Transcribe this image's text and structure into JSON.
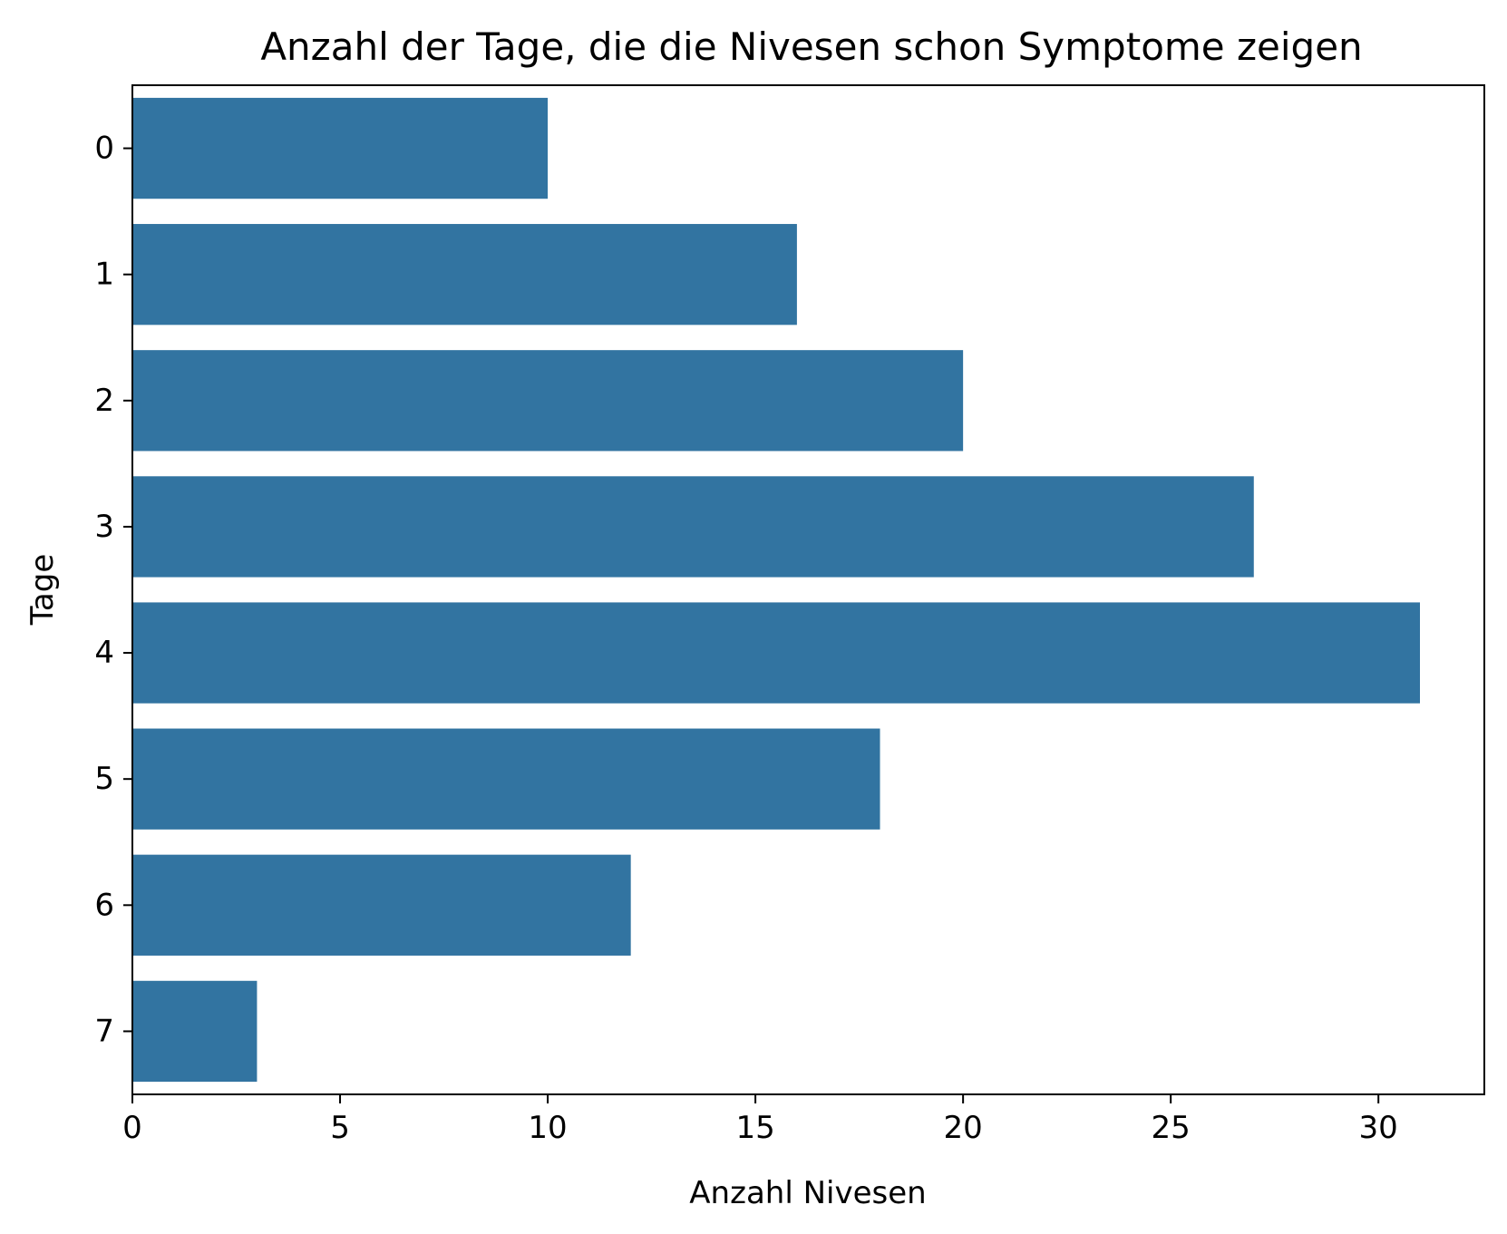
{
  "chart_data": {
    "type": "bar",
    "orientation": "horizontal",
    "title": "Anzahl der Tage, die die Nivesen schon Symptome zeigen",
    "xlabel": "Anzahl Nivesen",
    "ylabel": "Tage",
    "categories": [
      "0",
      "1",
      "2",
      "3",
      "4",
      "5",
      "6",
      "7"
    ],
    "values": [
      10,
      16,
      20,
      27,
      31,
      18,
      12,
      3
    ],
    "xlim": [
      0,
      32.55
    ],
    "xticks": [
      0,
      5,
      10,
      15,
      20,
      25,
      30
    ],
    "grid": false,
    "legend": "none",
    "bar_color": "#3274a1"
  }
}
